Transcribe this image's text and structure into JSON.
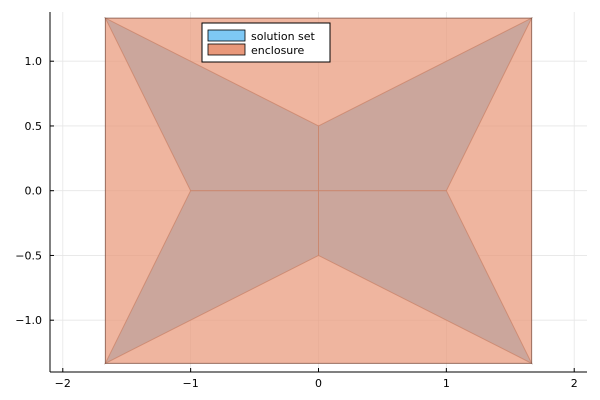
{
  "chart_data": {
    "type": "area",
    "title": "",
    "xlabel": "",
    "ylabel": "",
    "xlim": [
      -2.1,
      2.1
    ],
    "ylim": [
      -1.4,
      1.38
    ],
    "grid": true,
    "legend_position": "top-center",
    "x_ticks": [
      {
        "value": -2,
        "label": "−2"
      },
      {
        "value": -1,
        "label": "−1"
      },
      {
        "value": 0,
        "label": "0"
      },
      {
        "value": 1,
        "label": "1"
      },
      {
        "value": 2,
        "label": "2"
      }
    ],
    "y_ticks": [
      {
        "value": 1.0,
        "label": "1.0"
      },
      {
        "value": 0.5,
        "label": "0.5"
      },
      {
        "value": 0.0,
        "label": "0.0"
      },
      {
        "value": -0.5,
        "label": "−0.5"
      },
      {
        "value": -1.0,
        "label": "−1.0"
      }
    ],
    "series": [
      {
        "name": "solution set",
        "color": "#7ec8f5",
        "polygons": [
          [
            [
              0,
              0.5
            ],
            [
              1.667,
              1.333
            ],
            [
              1,
              0
            ],
            [
              0,
              0
            ]
          ],
          [
            [
              0,
              0.5
            ],
            [
              -1.667,
              1.333
            ],
            [
              -1,
              0
            ],
            [
              0,
              0
            ]
          ],
          [
            [
              0,
              -0.5
            ],
            [
              1.667,
              -1.333
            ],
            [
              1,
              0
            ],
            [
              0,
              0
            ]
          ],
          [
            [
              0,
              -0.5
            ],
            [
              -1.667,
              -1.333
            ],
            [
              -1,
              0
            ],
            [
              0,
              0
            ]
          ]
        ]
      },
      {
        "name": "enclosure",
        "color": "#e9987a",
        "polygons": [
          [
            [
              -1.667,
              -1.333
            ],
            [
              1.667,
              -1.333
            ],
            [
              1.667,
              1.333
            ],
            [
              -1.667,
              1.333
            ]
          ]
        ]
      }
    ]
  }
}
